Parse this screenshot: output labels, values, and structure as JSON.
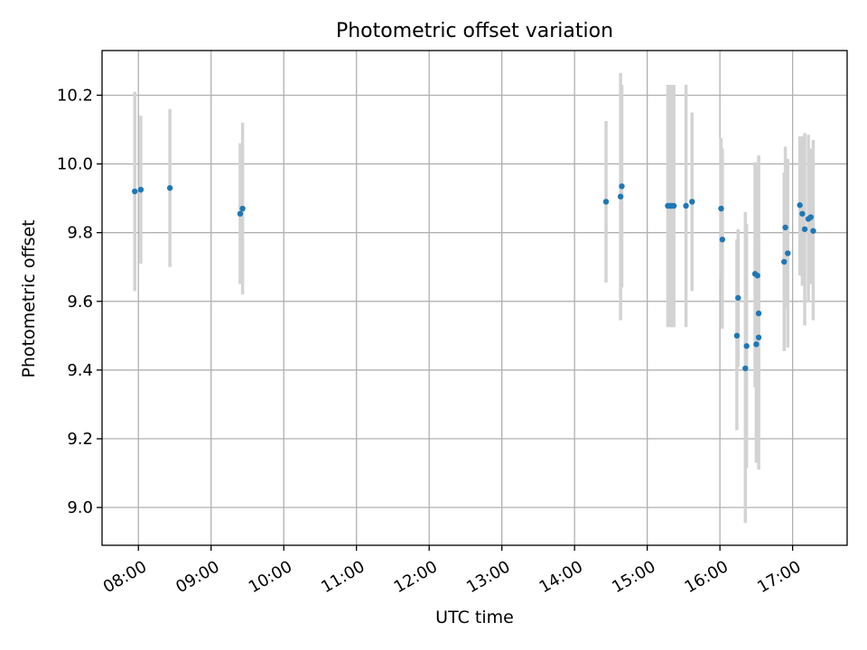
{
  "chart_data": {
    "type": "scatter",
    "title": "Photometric offset variation",
    "xlabel": "UTC time",
    "ylabel": "Photometric offset",
    "x_axis_type": "time",
    "xlim": [
      "07:30",
      "17:45"
    ],
    "ylim": [
      8.89,
      10.33
    ],
    "x_ticks": [
      "08:00",
      "09:00",
      "10:00",
      "11:00",
      "12:00",
      "13:00",
      "14:00",
      "15:00",
      "16:00",
      "17:00"
    ],
    "y_ticks": [
      9.0,
      9.2,
      9.4,
      9.6,
      9.8,
      10.0,
      10.2
    ],
    "y_tick_labels": [
      "9.0",
      "9.2",
      "9.4",
      "9.6",
      "9.8",
      "10.0",
      "10.2"
    ],
    "grid": true,
    "legend": false,
    "colors": {
      "points": "#1f77b4",
      "error_bars": "#d3d3d3",
      "grid": "#b0b0b0"
    },
    "points": [
      {
        "x": "07:57",
        "y": 9.92,
        "lo": 9.63,
        "hi": 10.21
      },
      {
        "x": "08:02",
        "y": 9.925,
        "lo": 9.71,
        "hi": 10.14
      },
      {
        "x": "08:26",
        "y": 9.93,
        "lo": 9.7,
        "hi": 10.16
      },
      {
        "x": "09:24",
        "y": 9.855,
        "lo": 9.65,
        "hi": 10.06
      },
      {
        "x": "09:26",
        "y": 9.87,
        "lo": 9.62,
        "hi": 10.12
      },
      {
        "x": "14:26",
        "y": 9.89,
        "lo": 9.655,
        "hi": 10.125
      },
      {
        "x": "14:38",
        "y": 9.905,
        "lo": 9.545,
        "hi": 10.265
      },
      {
        "x": "14:39",
        "y": 9.935,
        "lo": 9.64,
        "hi": 10.23
      },
      {
        "x": "15:17",
        "y": 9.878,
        "lo": 9.525,
        "hi": 10.23
      },
      {
        "x": "15:19",
        "y": 9.878,
        "lo": 9.525,
        "hi": 10.23
      },
      {
        "x": "15:20",
        "y": 9.878,
        "lo": 9.525,
        "hi": 10.23
      },
      {
        "x": "15:22",
        "y": 9.878,
        "lo": 9.525,
        "hi": 10.23
      },
      {
        "x": "15:32",
        "y": 9.878,
        "lo": 9.525,
        "hi": 10.23
      },
      {
        "x": "15:37",
        "y": 9.89,
        "lo": 9.63,
        "hi": 10.15
      },
      {
        "x": "16:01",
        "y": 9.87,
        "lo": 9.665,
        "hi": 10.075
      },
      {
        "x": "16:02",
        "y": 9.78,
        "lo": 9.52,
        "hi": 10.045
      },
      {
        "x": "16:14",
        "y": 9.5,
        "lo": 9.225,
        "hi": 9.78
      },
      {
        "x": "16:15",
        "y": 9.61,
        "lo": 9.41,
        "hi": 9.81
      },
      {
        "x": "16:21",
        "y": 9.405,
        "lo": 8.955,
        "hi": 9.86
      },
      {
        "x": "16:22",
        "y": 9.47,
        "lo": 9.115,
        "hi": 9.825
      },
      {
        "x": "16:29",
        "y": 9.68,
        "lo": 9.35,
        "hi": 10.005
      },
      {
        "x": "16:30",
        "y": 9.475,
        "lo": 9.13,
        "hi": 9.825
      },
      {
        "x": "16:31",
        "y": 9.675,
        "lo": 9.355,
        "hi": 9.995
      },
      {
        "x": "16:32",
        "y": 9.495,
        "lo": 9.225,
        "hi": 9.765
      },
      {
        "x": "16:32",
        "y": 9.565,
        "lo": 9.11,
        "hi": 10.025
      },
      {
        "x": "16:53",
        "y": 9.715,
        "lo": 9.455,
        "hi": 9.975
      },
      {
        "x": "16:54",
        "y": 9.815,
        "lo": 9.58,
        "hi": 10.05
      },
      {
        "x": "16:56",
        "y": 9.74,
        "lo": 9.465,
        "hi": 10.015
      },
      {
        "x": "17:06",
        "y": 9.88,
        "lo": 9.675,
        "hi": 10.08
      },
      {
        "x": "17:08",
        "y": 9.855,
        "lo": 9.645,
        "hi": 10.08
      },
      {
        "x": "17:10",
        "y": 9.81,
        "lo": 9.53,
        "hi": 10.09
      },
      {
        "x": "17:13",
        "y": 9.84,
        "lo": 9.6,
        "hi": 10.085
      },
      {
        "x": "17:15",
        "y": 9.845,
        "lo": 9.65,
        "hi": 10.045
      },
      {
        "x": "17:17",
        "y": 9.805,
        "lo": 9.545,
        "hi": 10.07
      }
    ]
  }
}
